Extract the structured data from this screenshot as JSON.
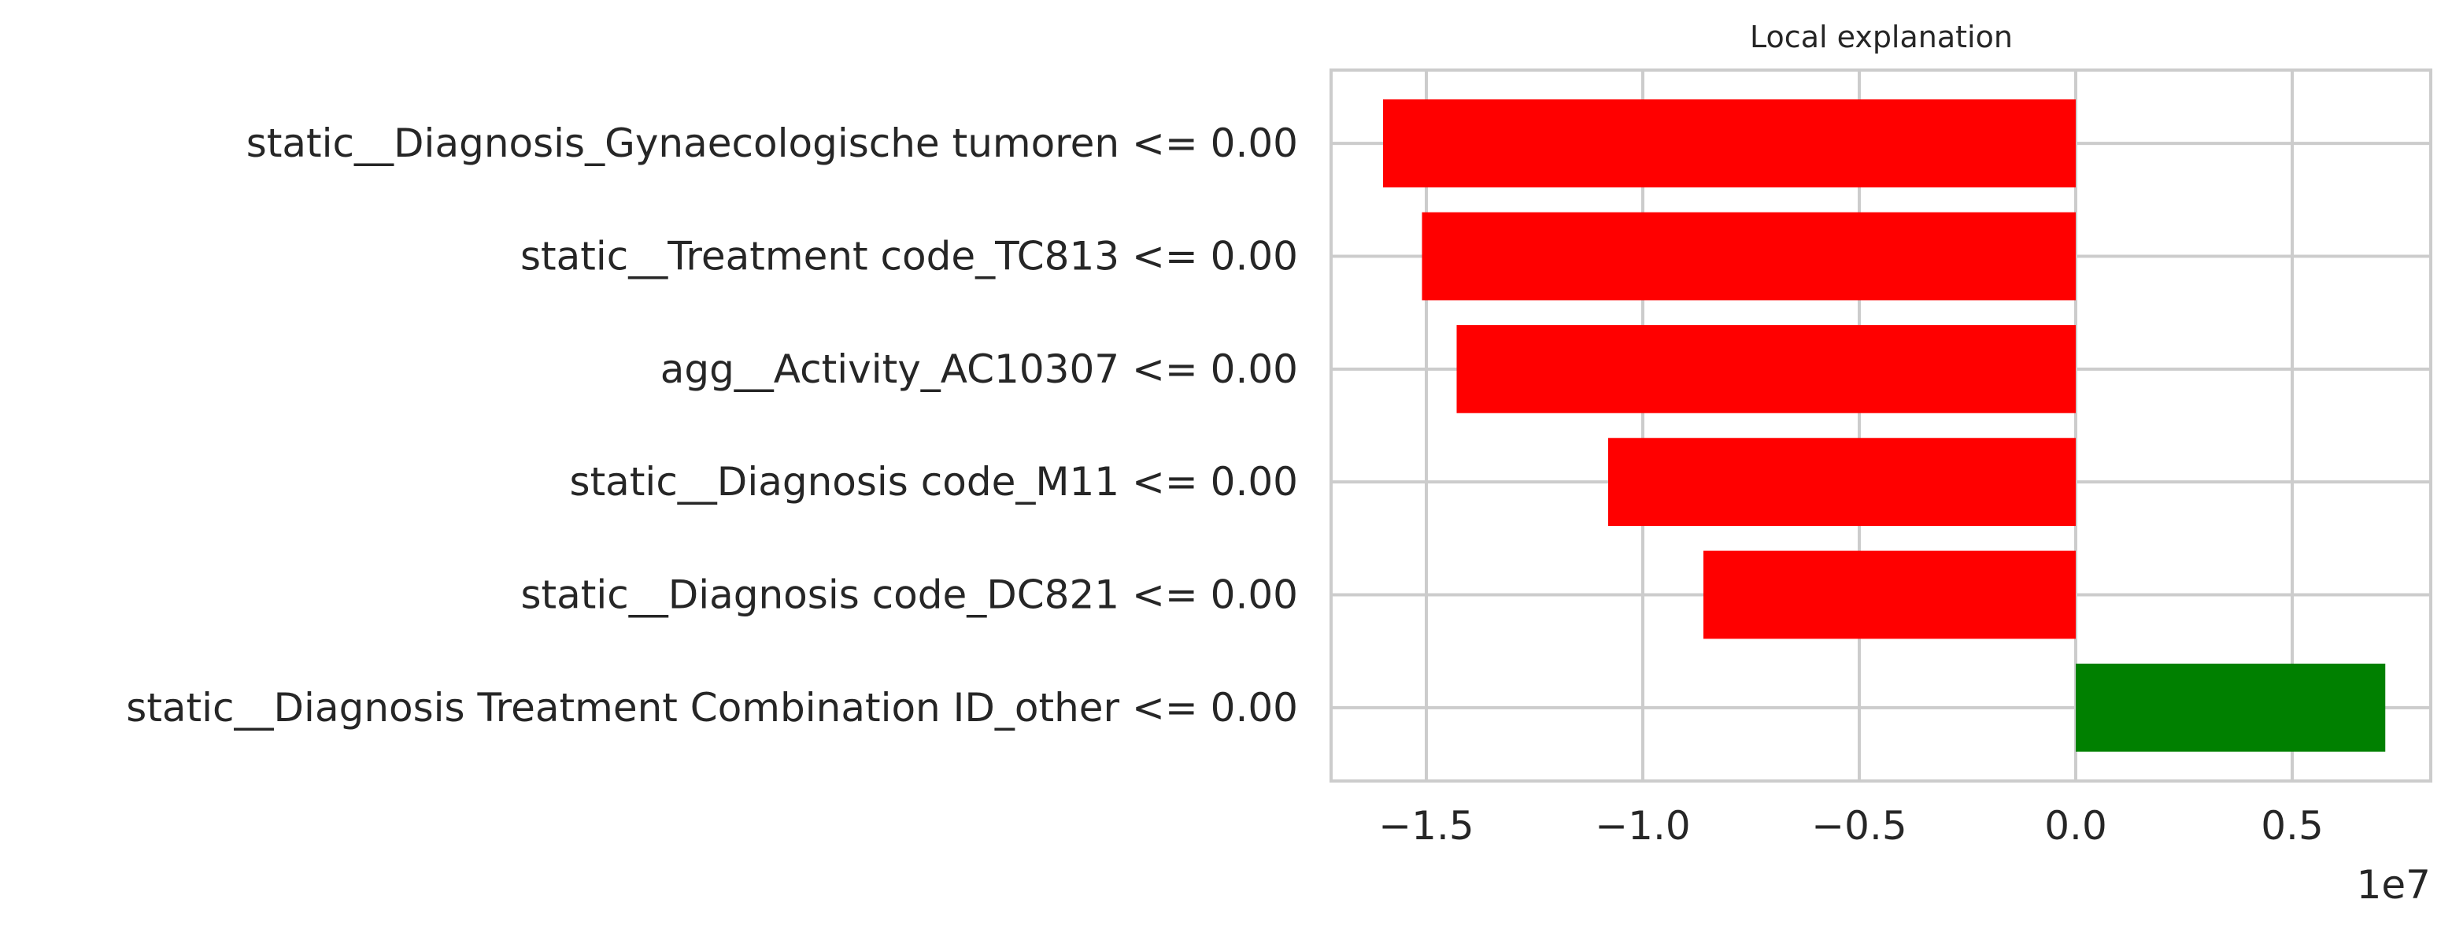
{
  "chart_data": {
    "type": "bar",
    "orientation": "horizontal",
    "title": "Local explanation",
    "categories": [
      "static__Diagnosis_Gynaecologische tumoren <= 0.00",
      "static__Treatment code_TC813 <= 0.00",
      "agg__Activity_AC10307 <= 0.00",
      "static__Diagnosis code_M11 <= 0.00",
      "static__Diagnosis code_DC821 <= 0.00",
      "static__Diagnosis Treatment Combination ID_other <= 0.00"
    ],
    "values": [
      -16000000,
      -15100000,
      -14300000,
      -10800000,
      -8600000,
      7150000
    ],
    "colors": [
      "#ff0000",
      "#ff0000",
      "#ff0000",
      "#ff0000",
      "#ff0000",
      "#008000"
    ],
    "xticks": [
      -15000000,
      -10000000,
      -5000000,
      0,
      5000000
    ],
    "xtick_labels": [
      "−1.5",
      "−1.0",
      "−0.5",
      "0.0",
      "0.5"
    ],
    "x_offset_label": "1e7",
    "xlim": [
      -17200000,
      8200000
    ],
    "grid": true,
    "xlabel": "",
    "ylabel": ""
  }
}
